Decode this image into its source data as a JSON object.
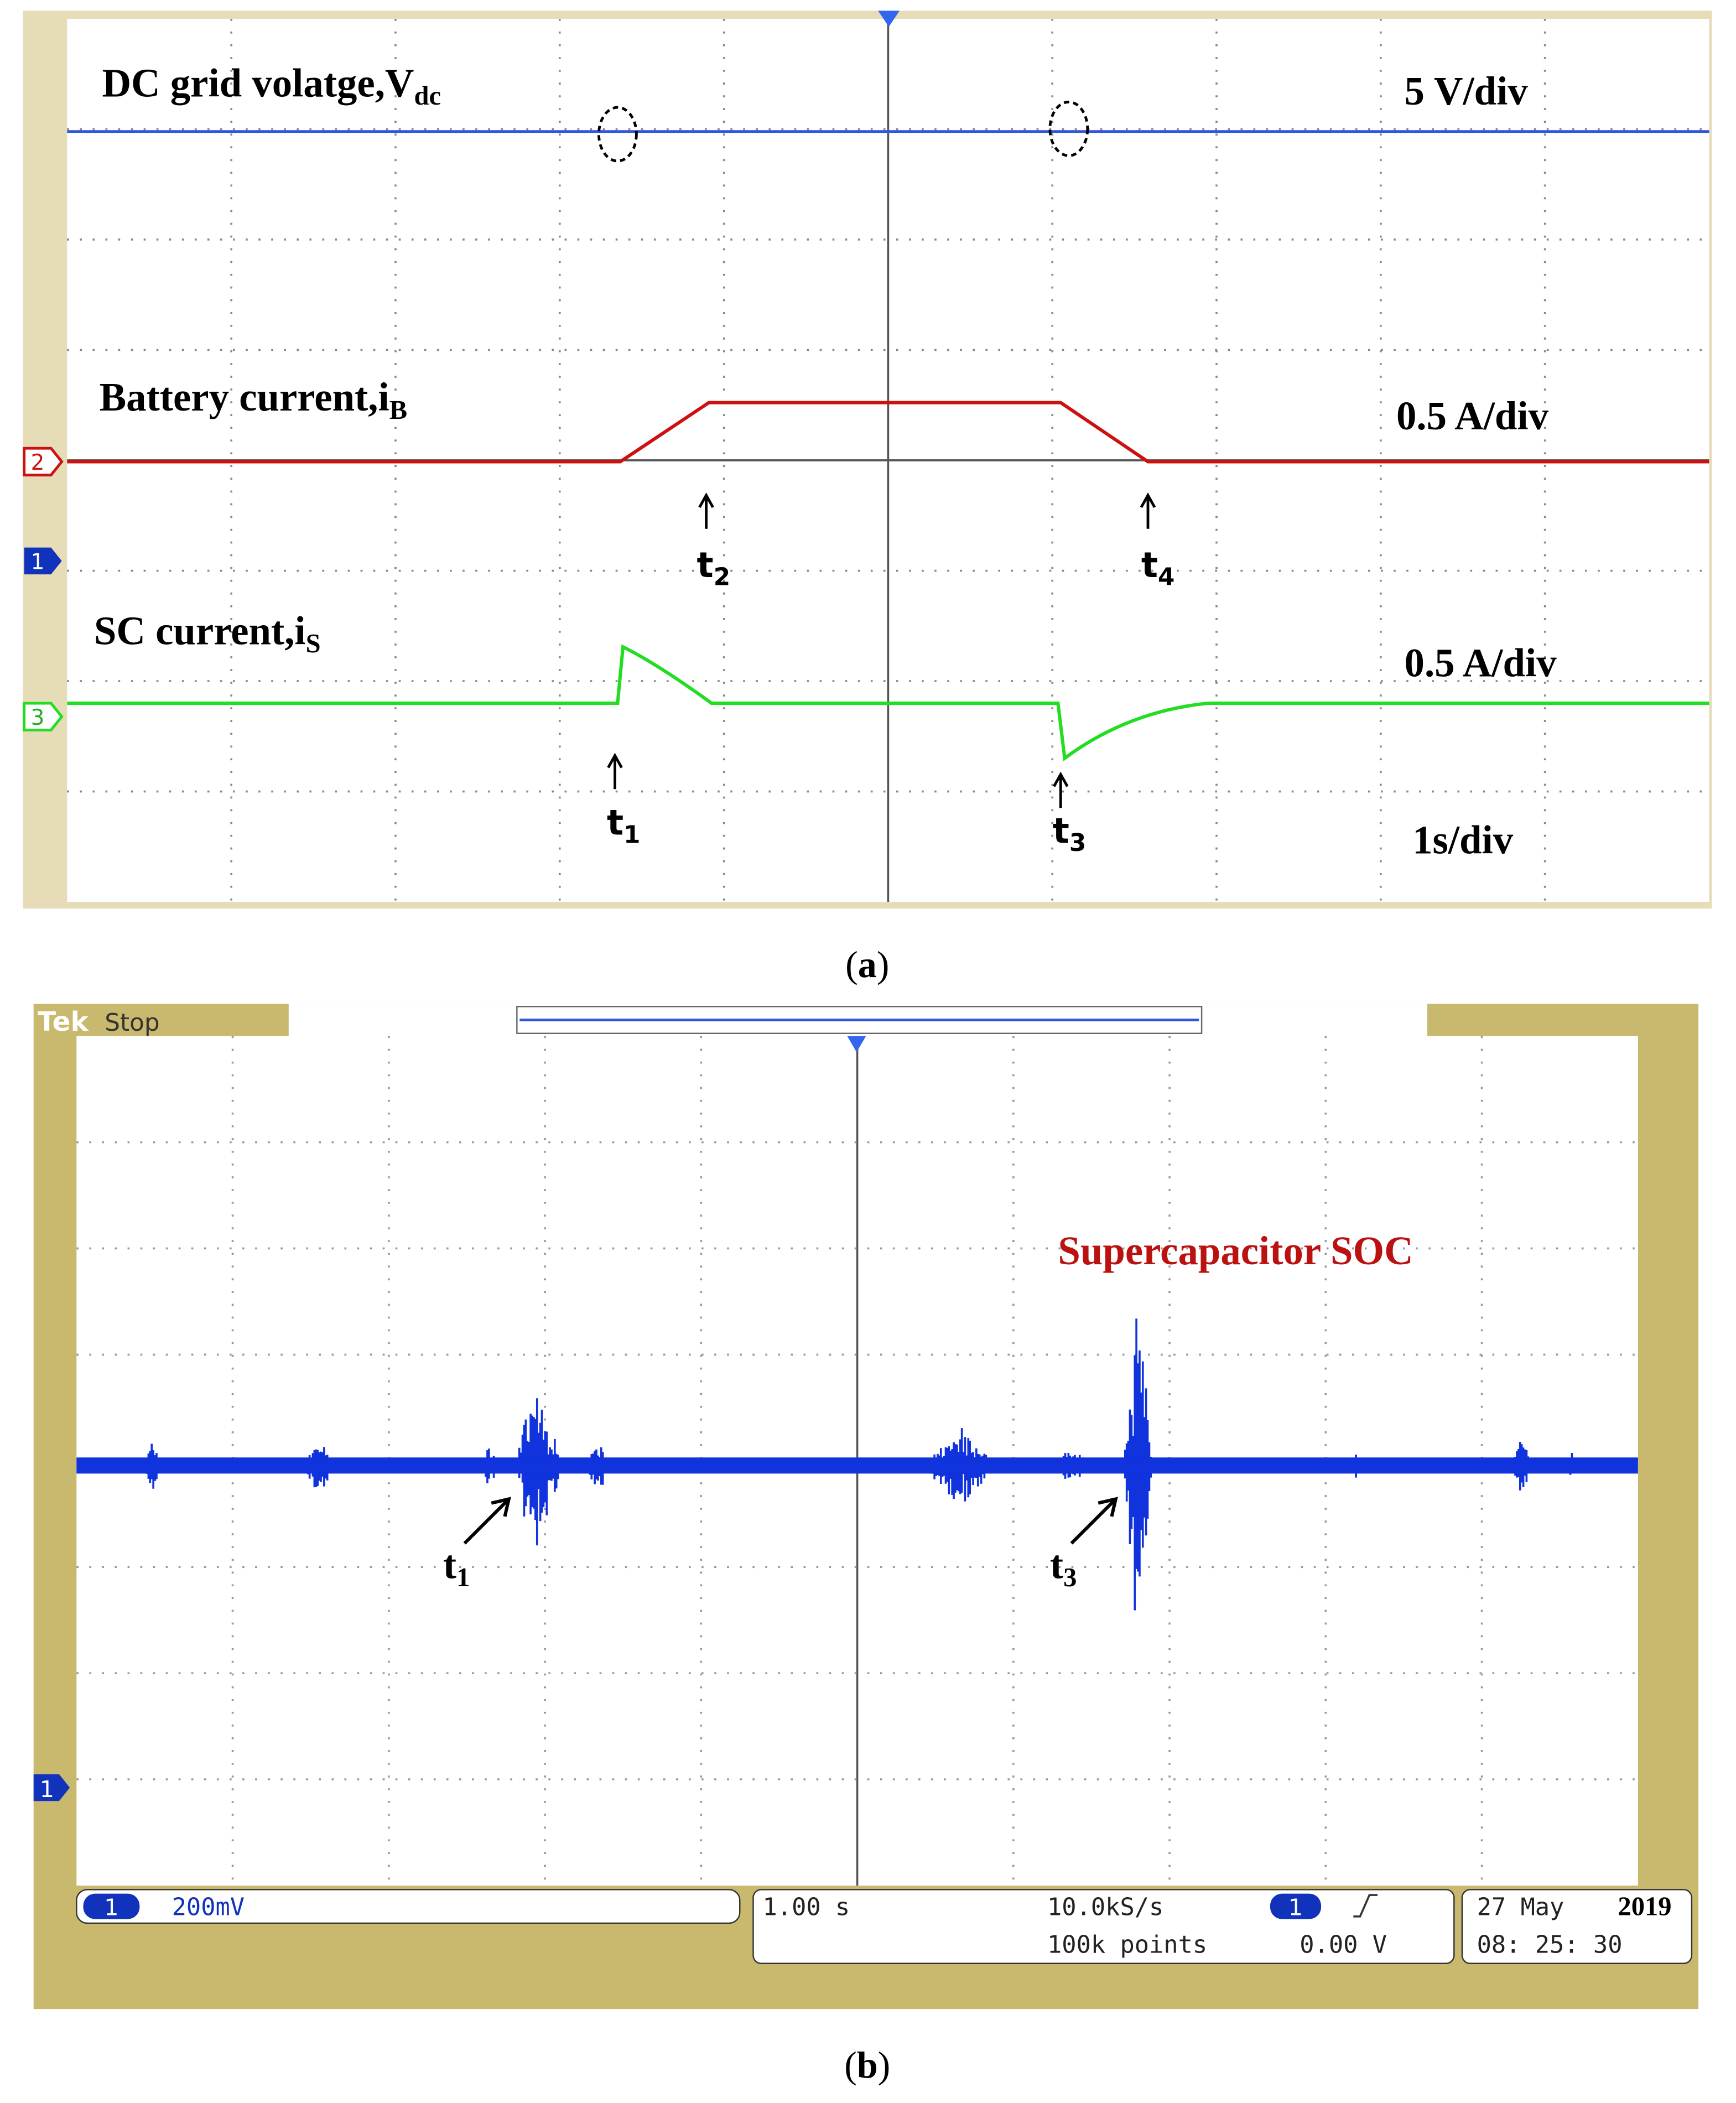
{
  "panel_a": {
    "traces": [
      {
        "label": {
          "text": "DC grid volatge,V",
          "sub": "dc"
        },
        "scale": "5 V/div"
      },
      {
        "label": {
          "text": "Battery current,i",
          "sub": "B"
        },
        "scale": "0.5 A/div"
      },
      {
        "label": {
          "text": "SC current,i",
          "sub": "S"
        },
        "scale": "0.5 A/div"
      }
    ],
    "timebase": "1s/div",
    "markers": [
      {
        "text": "t",
        "sub": "1"
      },
      {
        "text": "t",
        "sub": "2"
      },
      {
        "text": "t",
        "sub": "3"
      },
      {
        "text": "t",
        "sub": "4"
      }
    ],
    "channels": [
      "2",
      "1",
      "3"
    ],
    "caption": {
      "open": "(",
      "letter": "a",
      "close": ")"
    }
  },
  "panel_b": {
    "brand": "Tek",
    "status": "Stop",
    "label": "Supercapacitor SOC",
    "markers": [
      {
        "text": "t",
        "sub": "1"
      },
      {
        "text": "t",
        "sub": "3"
      }
    ],
    "channel": "1",
    "readout": {
      "ch": "1",
      "volts": "200mV",
      "time": "1.00 s",
      "rate": "10.0kS/s",
      "points": "100k points",
      "trig_ch": "1",
      "trig_level": "0.00 V",
      "date": "27 May",
      "year": "2019",
      "clock": "08: 25: 30"
    },
    "caption": {
      "open": "(",
      "letter": "b",
      "close": ")"
    }
  }
}
